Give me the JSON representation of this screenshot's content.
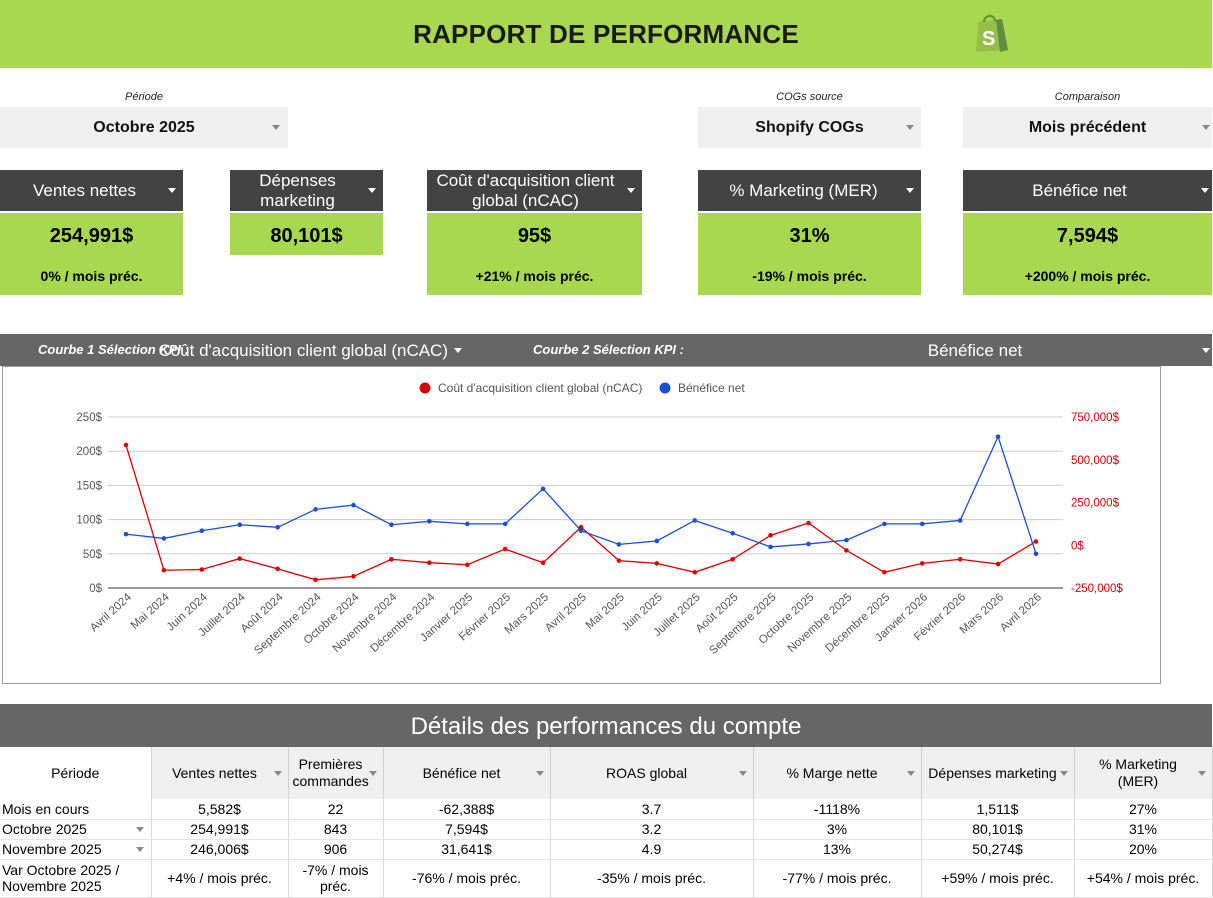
{
  "header": {
    "title": "RAPPORT DE PERFORMANCE",
    "logo_icon": "shopify-bag-icon",
    "color": "#a8d750"
  },
  "selectors": {
    "period": {
      "label": "Période",
      "value": "Octobre 2025"
    },
    "cogs": {
      "label": "COGs source",
      "value": "Shopify COGs"
    },
    "comparison": {
      "label": "Comparaison",
      "value": "Mois précédent"
    }
  },
  "kpis": [
    {
      "title": "Ventes nettes",
      "value": "254,991$",
      "variation": "0% / mois préc."
    },
    {
      "title": "Dépenses marketing",
      "value": "80,101$",
      "variation": ""
    },
    {
      "title": "Coût d'acquisition client global (nCAC)",
      "value": "95$",
      "variation": "+21% / mois préc."
    },
    {
      "title": "% Marketing (MER)",
      "value": "31%",
      "variation": "-19% / mois préc."
    },
    {
      "title": "Bénéfice net",
      "value": "7,594$",
      "variation": "+200% / mois préc."
    }
  ],
  "curve_selection": {
    "curve1_label": "Courbe 1 Sélection KPI :",
    "curve1_value": "Coût d'acquisition client global (nCAC)",
    "curve2_label": "Courbe 2 Sélection KPI :",
    "curve2_value": "Bénéfice net"
  },
  "chart_data": {
    "type": "line",
    "x": [
      "Avril 2024",
      "Mai 2024",
      "Juin 2024",
      "Juillet 2024",
      "Août 2024",
      "Septembre 2024",
      "Octobre 2024",
      "Novembre 2024",
      "Décembre 2024",
      "Janvier 2025",
      "Février 2025",
      "Mars 2025",
      "Avril 2025",
      "Mai 2025",
      "Juin 2025",
      "Juillet 2025",
      "Août 2025",
      "Septembre 2025",
      "Octobre 2025",
      "Novembre 2025",
      "Décembre 2025",
      "Janvier 2026",
      "Février 2026",
      "Mars 2026",
      "Avril 2026"
    ],
    "series": [
      {
        "name": "Coût d'acquisition client global (nCAC)",
        "color": "#d80000",
        "axis": "left",
        "values": [
          209,
          26,
          27,
          43,
          28,
          12,
          17,
          42,
          37,
          34,
          57,
          37,
          89,
          40,
          36,
          23,
          42,
          77,
          95,
          55,
          23,
          36,
          42,
          35,
          68
        ]
      },
      {
        "name": "Bénéfice net",
        "color": "#1a4fd6",
        "axis": "right",
        "values": [
          65000,
          40000,
          85000,
          120000,
          105000,
          210000,
          235000,
          120000,
          140000,
          125000,
          125000,
          330000,
          85000,
          5000,
          25000,
          145000,
          70000,
          -10000,
          7594,
          30000,
          125000,
          125000,
          145000,
          635000,
          -50000
        ]
      }
    ],
    "y_left": {
      "ticks": [
        "0$",
        "50$",
        "100$",
        "150$",
        "200$",
        "250$"
      ],
      "range": [
        0,
        250
      ]
    },
    "y_right": {
      "ticks": [
        "-250,000$",
        "0$",
        "250,000$",
        "500,000$",
        "750,000$"
      ],
      "range": [
        -250000,
        750000
      ]
    },
    "legend": "top-center",
    "grid": true
  },
  "details": {
    "title": "Détails des performances du compte",
    "columns": [
      "Période",
      "Ventes nettes",
      "Premières commandes",
      "Bénéfice net",
      "ROAS global",
      "% Marge nette",
      "Dépenses marketing",
      "% Marketing (MER)"
    ],
    "rows": [
      {
        "label": "Mois en cours",
        "dropdown": false,
        "cells": [
          "5,582$",
          "22",
          "-62,388$",
          "3.7",
          "-1118%",
          "1,511$",
          "27%"
        ]
      },
      {
        "label": "Octobre 2025",
        "dropdown": true,
        "cells": [
          "254,991$",
          "843",
          "7,594$",
          "3.2",
          "3%",
          "80,101$",
          "31%"
        ]
      },
      {
        "label": "Novembre 2025",
        "dropdown": true,
        "cells": [
          "246,006$",
          "906",
          "31,641$",
          "4.9",
          "13%",
          "50,274$",
          "20%"
        ]
      },
      {
        "label": "Var Octobre 2025 / Novembre 2025",
        "dropdown": false,
        "cells": [
          "+4% / mois préc.",
          "-7% / mois préc.",
          "-76% / mois préc.",
          "-35% / mois préc.",
          "-77% / mois préc.",
          "+59% / mois préc.",
          "+54% / mois préc."
        ]
      }
    ]
  }
}
